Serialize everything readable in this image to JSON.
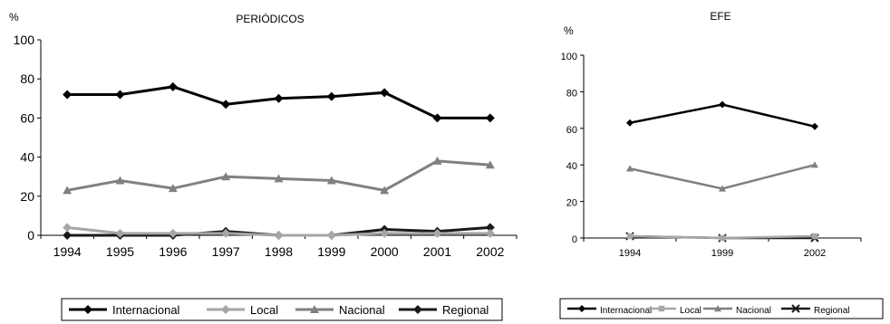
{
  "chart_data": [
    {
      "type": "line",
      "title": "PERIÓDICOS",
      "ylabel": "%",
      "xlabel": "",
      "ylim": [
        0,
        100
      ],
      "yticks": [
        "0",
        "20",
        "40",
        "60",
        "80",
        "100"
      ],
      "categories": [
        "1994",
        "1995",
        "1996",
        "1997",
        "1998",
        "1999",
        "2000",
        "2001",
        "2002"
      ],
      "legend_position": "bottom",
      "series": [
        {
          "name": "Internacional",
          "color": "#000000",
          "marker": "diamond",
          "values": [
            72,
            72,
            76,
            67,
            70,
            71,
            73,
            60,
            60
          ]
        },
        {
          "name": "Local",
          "color": "#a6a6a6",
          "marker": "diamond",
          "values": [
            4,
            1,
            1,
            1,
            0,
            0,
            1,
            1,
            1
          ]
        },
        {
          "name": "Nacional",
          "color": "#808080",
          "marker": "triangle",
          "values": [
            23,
            28,
            24,
            30,
            29,
            28,
            23,
            38,
            36
          ]
        },
        {
          "name": "Regional",
          "color": "#1a1a1a",
          "marker": "diamond",
          "values": [
            0,
            0,
            0,
            2,
            0,
            0,
            3,
            2,
            4
          ]
        }
      ]
    },
    {
      "type": "line",
      "title": "EFE",
      "ylabel": "%",
      "xlabel": "",
      "ylim": [
        0,
        100
      ],
      "yticks": [
        "0",
        "20",
        "40",
        "60",
        "80",
        "100"
      ],
      "categories": [
        "1994",
        "1999",
        "2002"
      ],
      "legend_position": "bottom",
      "series": [
        {
          "name": "Internacional",
          "color": "#000000",
          "marker": "diamond",
          "values": [
            63,
            73,
            61
          ]
        },
        {
          "name": "Local",
          "color": "#a6a6a6",
          "marker": "square",
          "values": [
            1,
            0,
            1
          ]
        },
        {
          "name": "Nacional",
          "color": "#808080",
          "marker": "triangle",
          "values": [
            38,
            27,
            40
          ]
        },
        {
          "name": "Regional",
          "color": "#1a1a1a",
          "marker": "x",
          "values": [
            1,
            0,
            0
          ]
        }
      ]
    }
  ]
}
